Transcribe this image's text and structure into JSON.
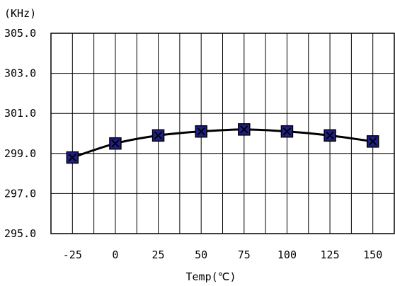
{
  "chart_data": {
    "type": "line",
    "title": "",
    "ylabel": "(KHz)",
    "xlabel": "Temp(℃)",
    "categories": [
      "-25",
      "0",
      "25",
      "50",
      "75",
      "100",
      "125",
      "150"
    ],
    "x": [
      -25,
      0,
      25,
      50,
      75,
      100,
      125,
      150
    ],
    "ylim": [
      295.0,
      305.0
    ],
    "yticks": [
      "305.0",
      "303.0",
      "301.0",
      "299.0",
      "297.0",
      "295.0"
    ],
    "ytick_values": [
      305,
      303,
      301,
      299,
      297,
      295
    ],
    "grid": true,
    "legend": "none",
    "series": [
      {
        "values": [
          298.8,
          299.5,
          299.9,
          300.1,
          300.2,
          300.1,
          299.9,
          299.6
        ],
        "line_color": "#000000",
        "marker_fill": "#1f1f8a",
        "marker_stroke": "#000000"
      }
    ]
  }
}
